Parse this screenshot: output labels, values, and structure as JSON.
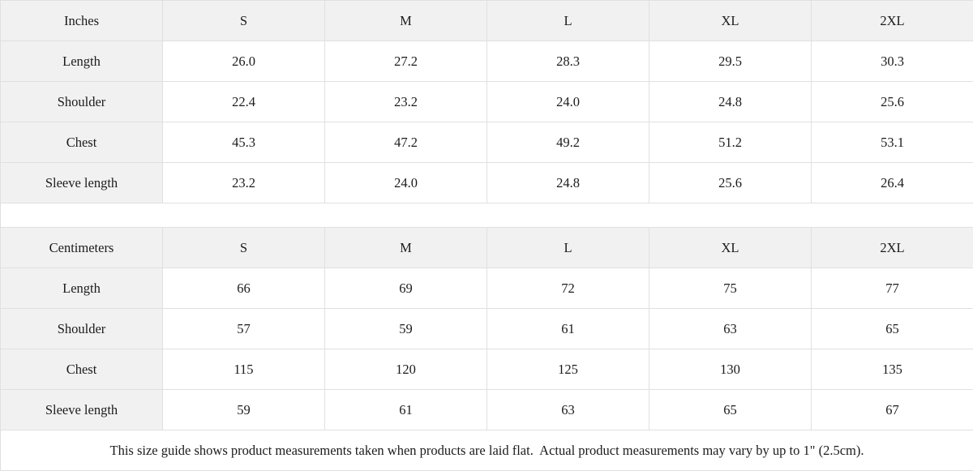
{
  "colors": {
    "header_bg": "#f1f1f1",
    "border": "#e0e0e0",
    "text": "#1b1b1b",
    "background": "#ffffff"
  },
  "inches": {
    "header": [
      "Inches",
      "S",
      "M",
      "L",
      "XL",
      "2XL"
    ],
    "rows": [
      {
        "label": "Length",
        "values": [
          "26.0",
          "27.2",
          "28.3",
          "29.5",
          "30.3"
        ]
      },
      {
        "label": "Shoulder",
        "values": [
          "22.4",
          "23.2",
          "24.0",
          "24.8",
          "25.6"
        ]
      },
      {
        "label": "Chest",
        "values": [
          "45.3",
          "47.2",
          "49.2",
          "51.2",
          "53.1"
        ]
      },
      {
        "label": "Sleeve length",
        "values": [
          "23.2",
          "24.0",
          "24.8",
          "25.6",
          "26.4"
        ]
      }
    ]
  },
  "centimeters": {
    "header": [
      "Centimeters",
      "S",
      "M",
      "L",
      "XL",
      "2XL"
    ],
    "rows": [
      {
        "label": "Length",
        "values": [
          "66",
          "69",
          "72",
          "75",
          "77"
        ]
      },
      {
        "label": "Shoulder",
        "values": [
          "57",
          "59",
          "61",
          "63",
          "65"
        ]
      },
      {
        "label": "Chest",
        "values": [
          "115",
          "120",
          "125",
          "130",
          "135"
        ]
      },
      {
        "label": "Sleeve length",
        "values": [
          "59",
          "61",
          "63",
          "65",
          "67"
        ]
      }
    ]
  },
  "footer": {
    "note": "This size guide shows product measurements taken when products are laid flat.  Actual product measurements may vary by up to 1\" (2.5cm)."
  }
}
